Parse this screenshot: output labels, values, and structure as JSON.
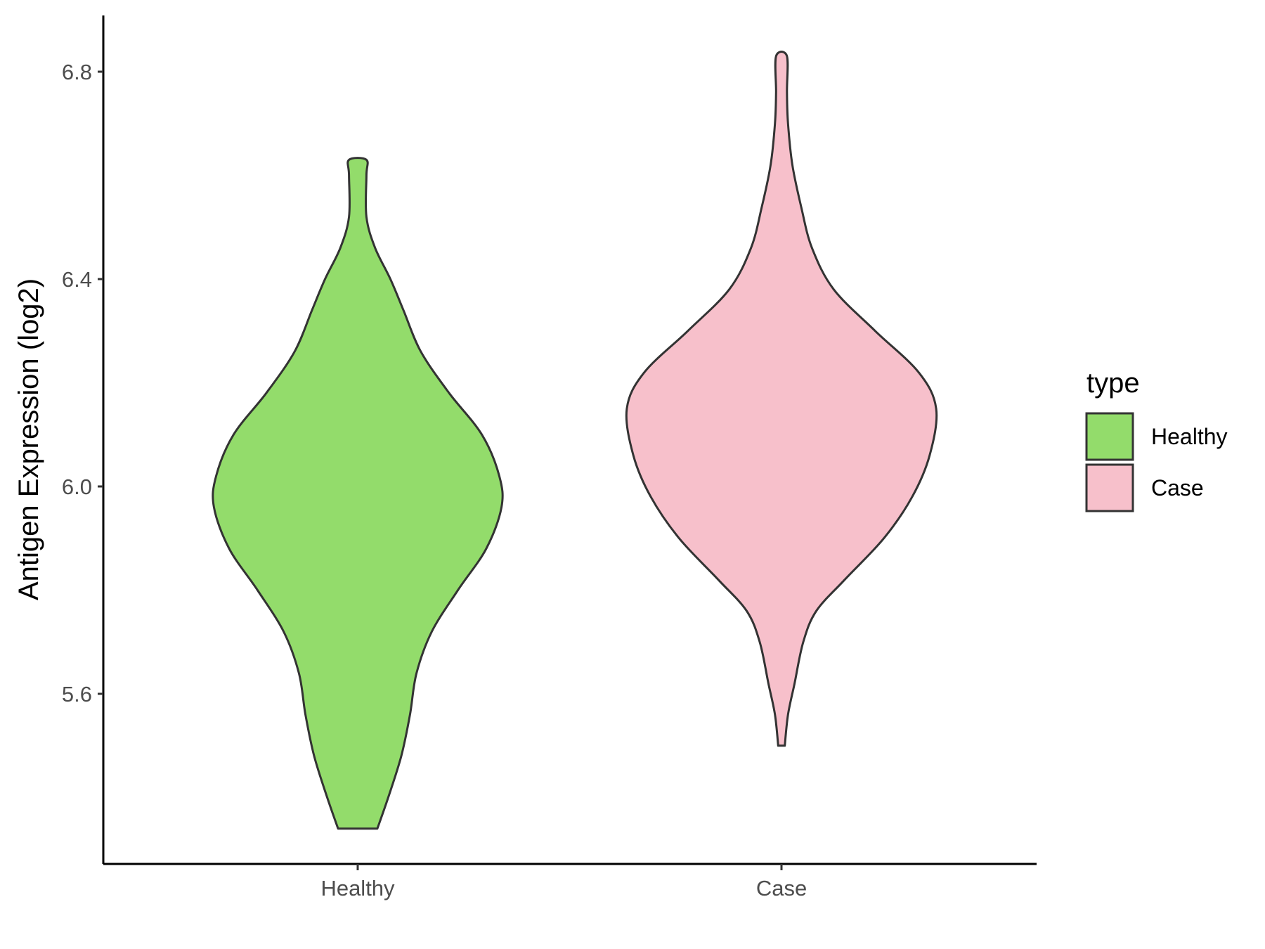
{
  "chart_data": {
    "type": "violin",
    "title": "",
    "xlabel": "",
    "ylabel": "Antigen Expression (log2)",
    "categories": [
      "Healthy",
      "Case"
    ],
    "ylim": [
      5.27,
      6.91
    ],
    "yticks": [
      "5.6",
      "6.0",
      "6.4",
      "6.8"
    ],
    "grid": false,
    "legend": {
      "title": "type",
      "position": "right"
    },
    "series": [
      {
        "name": "Healthy",
        "color": "#93DC6B",
        "min": 5.34,
        "max": 6.63,
        "profile": [
          [
            5.34,
            0.09
          ],
          [
            5.4,
            0.14
          ],
          [
            5.48,
            0.2
          ],
          [
            5.56,
            0.24
          ],
          [
            5.64,
            0.27
          ],
          [
            5.72,
            0.34
          ],
          [
            5.8,
            0.46
          ],
          [
            5.88,
            0.59
          ],
          [
            5.96,
            0.66
          ],
          [
            6.02,
            0.65
          ],
          [
            6.1,
            0.57
          ],
          [
            6.18,
            0.42
          ],
          [
            6.26,
            0.29
          ],
          [
            6.34,
            0.21
          ],
          [
            6.4,
            0.15
          ],
          [
            6.46,
            0.08
          ],
          [
            6.52,
            0.04
          ],
          [
            6.6,
            0.04
          ],
          [
            6.63,
            0.04
          ]
        ]
      },
      {
        "name": "Case",
        "color": "#F7C0CB",
        "min": 5.5,
        "max": 6.83,
        "profile": [
          [
            5.5,
            0.015
          ],
          [
            5.56,
            0.03
          ],
          [
            5.62,
            0.06
          ],
          [
            5.7,
            0.1
          ],
          [
            5.76,
            0.16
          ],
          [
            5.82,
            0.29
          ],
          [
            5.9,
            0.47
          ],
          [
            5.98,
            0.6
          ],
          [
            6.06,
            0.68
          ],
          [
            6.15,
            0.71
          ],
          [
            6.22,
            0.63
          ],
          [
            6.3,
            0.43
          ],
          [
            6.38,
            0.24
          ],
          [
            6.46,
            0.14
          ],
          [
            6.54,
            0.09
          ],
          [
            6.62,
            0.05
          ],
          [
            6.7,
            0.03
          ],
          [
            6.76,
            0.025
          ],
          [
            6.83,
            0.025
          ]
        ]
      }
    ]
  }
}
